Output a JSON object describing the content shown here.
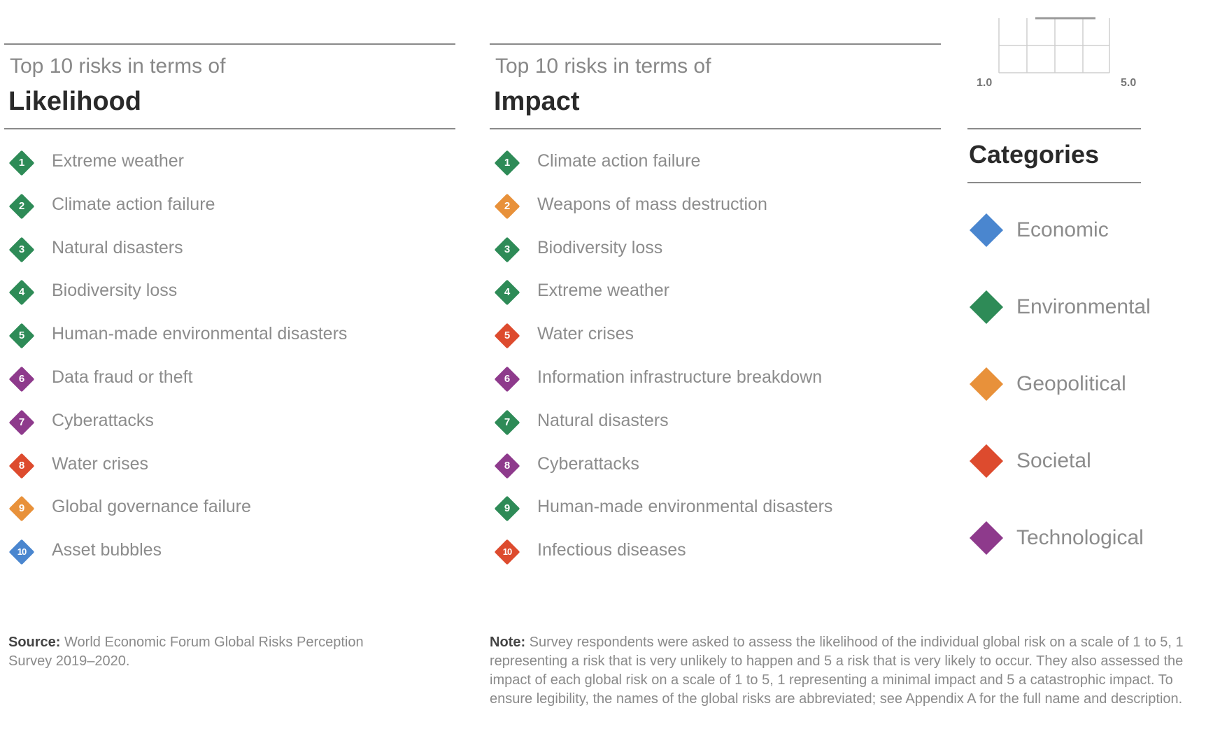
{
  "likelihood": {
    "subtitle": "Top 10 risks in terms of",
    "title": "Likelihood",
    "items": [
      {
        "rank": "1",
        "label": "Extreme weather",
        "category": "environmental"
      },
      {
        "rank": "2",
        "label": "Climate action failure",
        "category": "environmental"
      },
      {
        "rank": "3",
        "label": "Natural disasters",
        "category": "environmental"
      },
      {
        "rank": "4",
        "label": "Biodiversity loss",
        "category": "environmental"
      },
      {
        "rank": "5",
        "label": "Human-made environmental disasters",
        "category": "environmental"
      },
      {
        "rank": "6",
        "label": "Data fraud or theft",
        "category": "technological"
      },
      {
        "rank": "7",
        "label": "Cyberattacks",
        "category": "technological"
      },
      {
        "rank": "8",
        "label": "Water crises",
        "category": "societal"
      },
      {
        "rank": "9",
        "label": "Global governance failure",
        "category": "geopolitical"
      },
      {
        "rank": "10",
        "label": "Asset bubbles",
        "category": "economic"
      }
    ]
  },
  "impact": {
    "subtitle": "Top 10 risks in terms of",
    "title": "Impact",
    "items": [
      {
        "rank": "1",
        "label": "Climate action failure",
        "category": "environmental"
      },
      {
        "rank": "2",
        "label": "Weapons of mass destruction",
        "category": "geopolitical"
      },
      {
        "rank": "3",
        "label": "Biodiversity loss",
        "category": "environmental"
      },
      {
        "rank": "4",
        "label": "Extreme weather",
        "category": "environmental"
      },
      {
        "rank": "5",
        "label": "Water crises",
        "category": "societal"
      },
      {
        "rank": "6",
        "label": "Information infrastructure breakdown",
        "category": "technological"
      },
      {
        "rank": "7",
        "label": "Natural disasters",
        "category": "environmental"
      },
      {
        "rank": "8",
        "label": "Cyberattacks",
        "category": "technological"
      },
      {
        "rank": "9",
        "label": "Human-made environmental disasters",
        "category": "environmental"
      },
      {
        "rank": "10",
        "label": "Infectious diseases",
        "category": "societal"
      }
    ]
  },
  "scale": {
    "min_label": "1.0",
    "max_label": "5.0"
  },
  "categories": {
    "title": "Categories",
    "items": [
      {
        "key": "economic",
        "label": "Economic",
        "color": "#4a86cf"
      },
      {
        "key": "environmental",
        "label": "Environmental",
        "color": "#2e8b57"
      },
      {
        "key": "geopolitical",
        "label": "Geopolitical",
        "color": "#e8913a"
      },
      {
        "key": "societal",
        "label": "Societal",
        "color": "#dd4b2e"
      },
      {
        "key": "technological",
        "label": "Technological",
        "color": "#8e3a8c"
      }
    ]
  },
  "footer": {
    "source_label": "Source:",
    "source_text": "World Economic Forum Global Risks Perception Survey 2019–2020.",
    "note_label": "Note:",
    "note_text": "Survey respondents were asked to assess the likelihood of the individual global risk on a scale of 1 to 5, 1 representing a risk that is very unlikely to happen and 5 a risk that is very likely to occur. They also assessed the impact of each global risk on a scale of 1 to 5, 1 representing a minimal impact and 5 a catastrophic impact. To ensure legibility, the names of the global risks are abbreviated; see Appendix A for the full name and description."
  }
}
